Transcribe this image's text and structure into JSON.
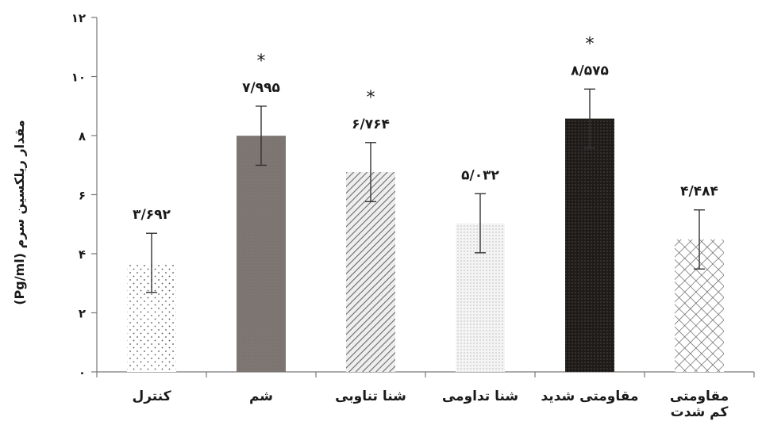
{
  "chart_data": {
    "type": "bar",
    "ylabel": "(Pg/ml) مقدار ریلکسین سرم",
    "ylim": [
      0,
      12
    ],
    "yticks": [
      {
        "value": 0,
        "label": "۰"
      },
      {
        "value": 2,
        "label": "۲"
      },
      {
        "value": 4,
        "label": "۴"
      },
      {
        "value": 6,
        "label": "۶"
      },
      {
        "value": 8,
        "label": "۸"
      },
      {
        "value": 10,
        "label": "۱۰"
      },
      {
        "value": 12,
        "label": "۱۲"
      }
    ],
    "grid": false,
    "categories": [
      {
        "lines": [
          "کنترل"
        ]
      },
      {
        "lines": [
          "شم"
        ]
      },
      {
        "lines": [
          "شنا تناوبی"
        ]
      },
      {
        "lines": [
          "شنا تداومی"
        ]
      },
      {
        "lines": [
          "مقاومتی شدید"
        ]
      },
      {
        "lines": [
          "مقاومتی",
          "کم شدت"
        ]
      }
    ],
    "values": [
      3.692,
      7.995,
      6.764,
      5.032,
      8.575,
      4.484
    ],
    "value_labels": [
      "۳/۶۹۲",
      "۷/۹۹۵",
      "۶/۷۶۴",
      "۵/۰۳۲",
      "۸/۵۷۵",
      "۴/۴۸۴"
    ],
    "error": [
      1.0,
      1.0,
      1.0,
      1.0,
      1.0,
      1.0
    ],
    "significance": [
      "",
      "*",
      "*",
      "",
      "*",
      ""
    ],
    "patterns": [
      "sparse-dots",
      "solid-gray",
      "diagonal-lines",
      "fine-dots",
      "dark-dots",
      "crosshatch"
    ]
  }
}
